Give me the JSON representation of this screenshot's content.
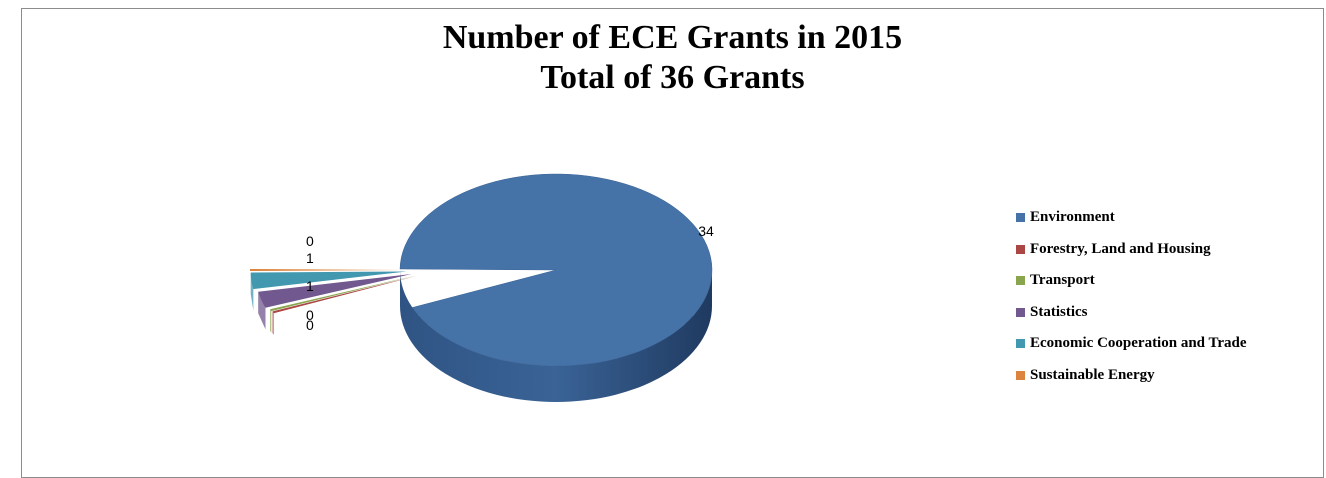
{
  "chart_data": {
    "type": "pie",
    "title": "Number of ECE Grants in 2015",
    "subtitle": "Total of 36 Grants",
    "legend_position": "right",
    "three_d": true,
    "slices": [
      {
        "name": "Environment",
        "value": 34,
        "label": "34",
        "color": "#4572a7"
      },
      {
        "name": "Forestry, Land and Housing",
        "value": 0,
        "label": "0",
        "color": "#aa4643"
      },
      {
        "name": "Transport",
        "value": 0,
        "label": "0",
        "color": "#89a54e"
      },
      {
        "name": "Statistics",
        "value": 1,
        "label": "1",
        "color": "#71588f"
      },
      {
        "name": "Economic Cooperation and Trade",
        "value": 1,
        "label": "1",
        "color": "#4198af"
      },
      {
        "name": "Sustainable Energy",
        "value": 0,
        "label": "0",
        "color": "#db843d"
      }
    ]
  }
}
